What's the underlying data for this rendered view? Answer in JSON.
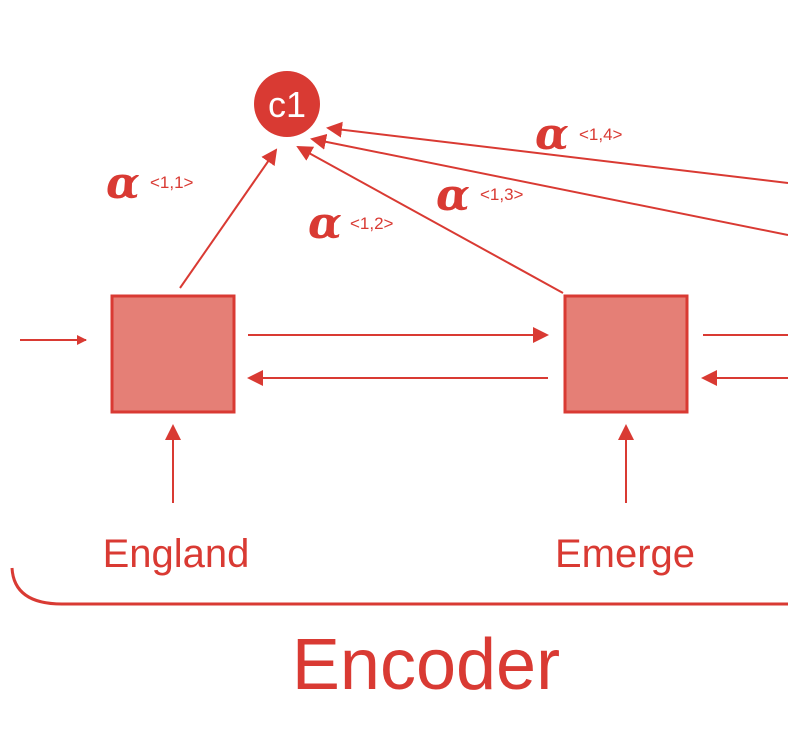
{
  "colors": {
    "accent": "#d93a33",
    "box_fill": "#e57f76",
    "box_stroke": "#d93a33",
    "node_fill": "#d93a33",
    "node_text": "#ffffff",
    "background": "#ffffff"
  },
  "context_node": {
    "label": "c1"
  },
  "attention": [
    {
      "symbol": "α",
      "superscript": "<1,1>"
    },
    {
      "symbol": "α",
      "superscript": "<1,2>"
    },
    {
      "symbol": "α",
      "superscript": "<1,3>"
    },
    {
      "symbol": "α",
      "superscript": "<1,4>"
    }
  ],
  "words": [
    {
      "label": "England"
    },
    {
      "label": "Emerge"
    }
  ],
  "encoder": {
    "label": "Encoder"
  }
}
